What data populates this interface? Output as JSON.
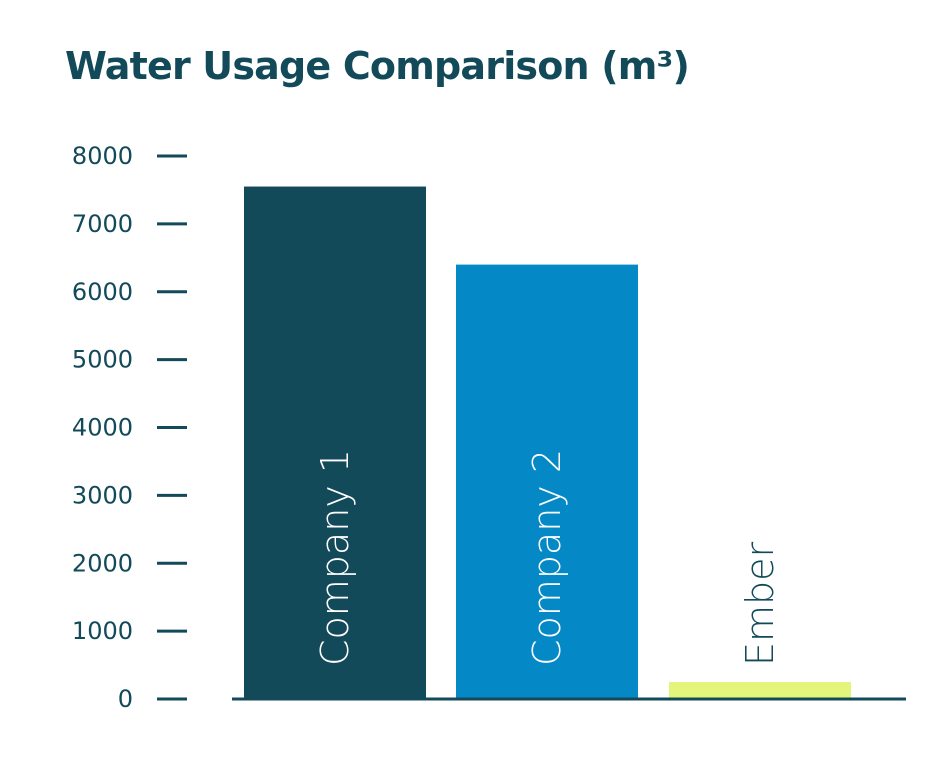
{
  "chart_data": {
    "type": "bar",
    "title": "Water Usage Comparison (m³)",
    "categories": [
      "Company 1",
      "Company 2",
      "Ember"
    ],
    "values": [
      7550,
      6400,
      250
    ],
    "ylim": [
      0,
      8000
    ],
    "yticks": [
      0,
      1000,
      2000,
      3000,
      4000,
      5000,
      6000,
      7000,
      8000
    ],
    "yticklabels": [
      "0",
      "1000",
      "2000",
      "3000",
      "4000",
      "5000",
      "6000",
      "7000",
      "8000"
    ],
    "colors": [
      "#134a5a",
      "#0489c6",
      "#e3f57a"
    ],
    "label_colors": [
      "#ffffff",
      "#ffffff",
      "#134a5a"
    ],
    "axis_color": "#134a5a",
    "xlabel": "",
    "ylabel": "",
    "grid": false,
    "legend": "none"
  }
}
